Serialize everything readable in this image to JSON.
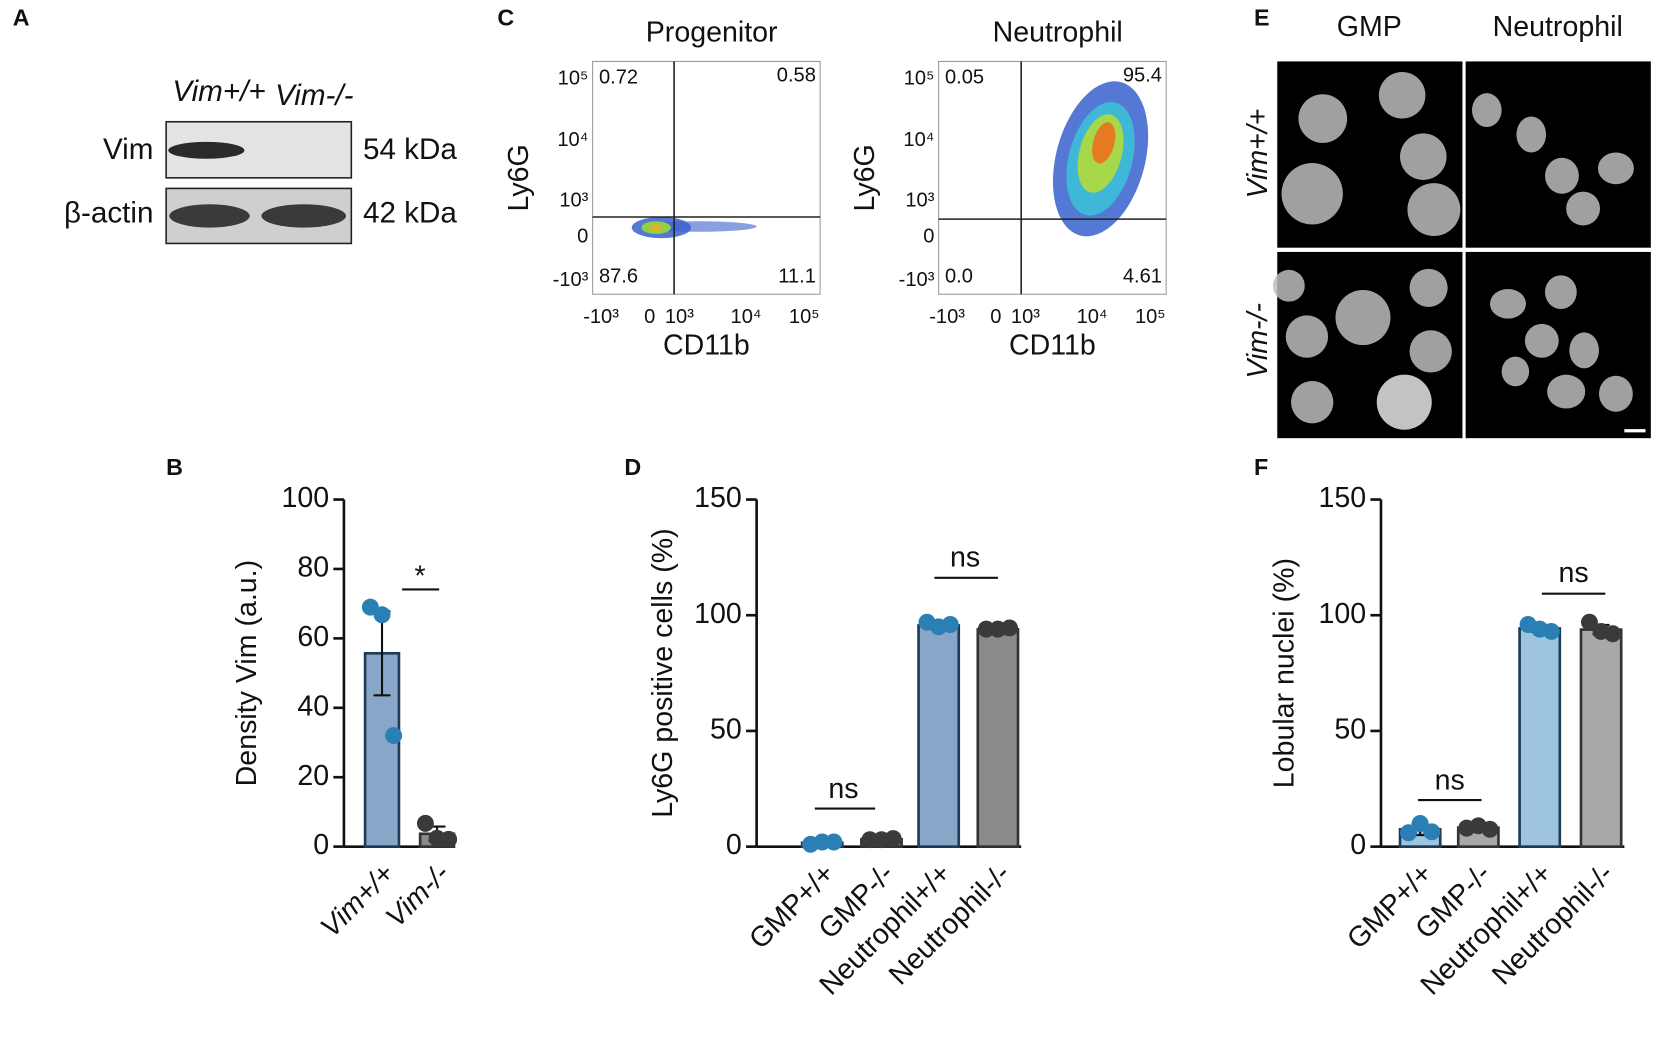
{
  "blot": {
    "panel_label": "A",
    "lanes": [
      "Vim+/+",
      "Vim-/-"
    ],
    "rows": [
      {
        "protein": "Vim",
        "size": "54 kDa"
      },
      {
        "protein": "β-actin",
        "size": "42 kDa"
      }
    ]
  },
  "flow": {
    "panel_label": "C",
    "y_label": "Ly6G",
    "x_label": "CD11b",
    "y_ticks": [
      "10⁵",
      "10⁴",
      "10³",
      "0",
      "-10³"
    ],
    "x_ticks": [
      "-10³",
      "0",
      "10³",
      "10⁴",
      "10⁵"
    ],
    "plots": [
      {
        "title": "Progenitor",
        "quadrants": [
          "0.72",
          "0.58",
          "87.6",
          "11.1"
        ]
      },
      {
        "title": "Neutrophil",
        "quadrants": [
          "0.05",
          "95.4",
          "0.0",
          "4.61"
        ]
      }
    ]
  },
  "images": {
    "panel_label": "E",
    "columns": [
      "GMP",
      "Neutrophil"
    ],
    "rows": [
      "Vim+/+",
      "Vim-/-"
    ]
  },
  "chart_data": [
    {
      "type": "bar",
      "panel_label": "B",
      "y_label": "Density Vim (a.u.)",
      "categories": [
        "Vim+/+",
        "Vim-/-"
      ],
      "values": [
        55.7,
        3.7
      ],
      "errors": [
        12.1,
        2.1
      ],
      "points": [
        [
          69,
          66.8,
          32
        ],
        [
          6.7,
          2.4,
          2.1
        ]
      ],
      "colors": [
        "#87a6c8",
        "#8a8a8a"
      ],
      "point_colors": [
        "#2a7fb5",
        "#3a3a3a"
      ],
      "ylim": [
        0,
        100
      ],
      "yticks": [
        0,
        20,
        40,
        60,
        80,
        100
      ],
      "annotations": [
        "*"
      ]
    },
    {
      "type": "bar",
      "panel_label": "D",
      "y_label": "Ly6G positive cells (%)",
      "categories": [
        "GMP+/+",
        "GMP-/-",
        "Neutrophil+/+",
        "Neutrophil-/-"
      ],
      "values": [
        1.7,
        3.2,
        95.6,
        93.9
      ],
      "errors": [
        0.4,
        0.3,
        1.6,
        0.5
      ],
      "points": [
        [
          1,
          2,
          2
        ],
        [
          3,
          3,
          3.5
        ],
        [
          97,
          95,
          96
        ],
        [
          94,
          94,
          94.5
        ]
      ],
      "colors": [
        "#87a6c8",
        "#8a8a8a",
        "#87a6c8",
        "#8a8a8a"
      ],
      "point_colors": [
        "#2a7fb5",
        "#3a3a3a",
        "#2a7fb5",
        "#3a3a3a"
      ],
      "ylim": [
        0,
        150
      ],
      "yticks": [
        0,
        50,
        100,
        150
      ],
      "annotations": [
        "ns",
        "ns"
      ]
    },
    {
      "type": "bar",
      "panel_label": "F",
      "y_label": "Lobular nuclei (%)",
      "categories": [
        "GMP+/+",
        "GMP-/-",
        "Neutrophil+/+",
        "Neutrophil-/-"
      ],
      "values": [
        7.5,
        8.2,
        94.3,
        93.8
      ],
      "errors": [
        2.5,
        0.8,
        1.5,
        2.0
      ],
      "points": [
        [
          6,
          10,
          6.4
        ],
        [
          8,
          9,
          7.5
        ],
        [
          96,
          94,
          93
        ],
        [
          97,
          93,
          92
        ]
      ],
      "colors": [
        "#9ec5e0",
        "#a8a8a8",
        "#9ec5e0",
        "#a8a8a8"
      ],
      "point_colors": [
        "#2a7fb5",
        "#3a3a3a",
        "#2a7fb5",
        "#3a3a3a"
      ],
      "ylim": [
        0,
        150
      ],
      "yticks": [
        0,
        50,
        100,
        150
      ],
      "annotations": [
        "ns",
        "ns"
      ]
    }
  ]
}
